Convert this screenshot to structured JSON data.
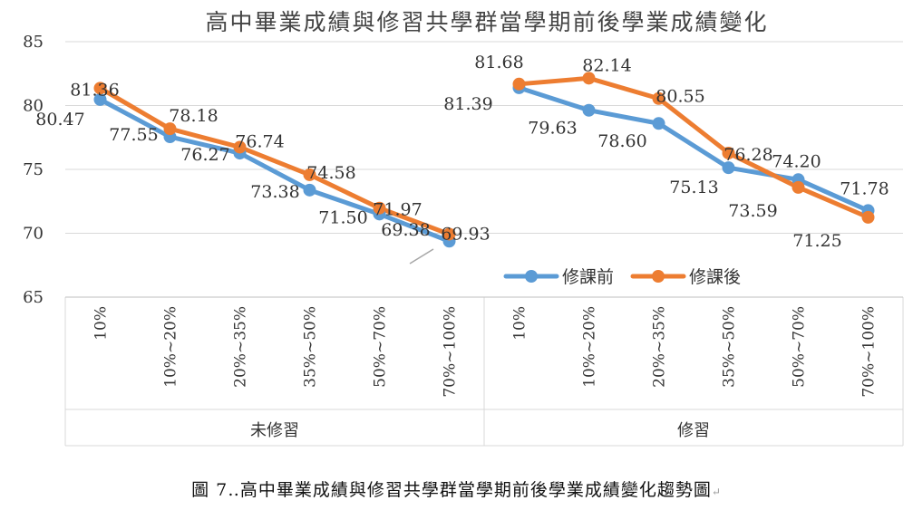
{
  "caption": {
    "text": "圖 7‥高中畢業成績與修習共學群當學期前後學業成績變化趨勢圖",
    "end_mark": "↵"
  },
  "chart_data": {
    "type": "line",
    "title": "高中畢業成績與修習共學群當學期前後學業成績變化",
    "ylim": [
      65,
      85
    ],
    "yticks": [
      65,
      70,
      75,
      80,
      85
    ],
    "grid": true,
    "legend_position": "right-middle",
    "groups": [
      {
        "label": "未修習",
        "categories": [
          "10%",
          "10%~20%",
          "20%~35%",
          "35%~50%",
          "50%~70%",
          "70%~100%"
        ]
      },
      {
        "label": "修習",
        "categories": [
          "10%",
          "10%~20%",
          "20%~35%",
          "35%~50%",
          "50%~70%",
          "70%~100%"
        ]
      }
    ],
    "series": [
      {
        "name": "修課前",
        "color": "#5B9BD5",
        "groups": [
          [
            80.47,
            77.55,
            76.27,
            73.38,
            71.5,
            69.38
          ],
          [
            81.39,
            79.63,
            78.6,
            75.13,
            74.2,
            71.78
          ]
        ]
      },
      {
        "name": "修課後",
        "color": "#ED7D31",
        "groups": [
          [
            81.36,
            78.18,
            76.74,
            74.58,
            71.97,
            69.93
          ],
          [
            81.68,
            82.14,
            80.55,
            76.28,
            73.59,
            71.25
          ]
        ]
      }
    ],
    "data_labels": [
      [
        [
          "80.47",
          "77.55",
          "76.27",
          "73.38",
          "71.50",
          "69.38"
        ],
        [
          "81.39",
          "79.63",
          "78.60",
          "75.13",
          "74.20",
          "71.78"
        ]
      ],
      [
        [
          "81.36",
          "78.18",
          "76.74",
          "74.58",
          "71.97",
          "69.93"
        ],
        [
          "81.68",
          "82.14",
          "80.55",
          "76.28",
          "73.59",
          "71.25"
        ]
      ]
    ]
  }
}
